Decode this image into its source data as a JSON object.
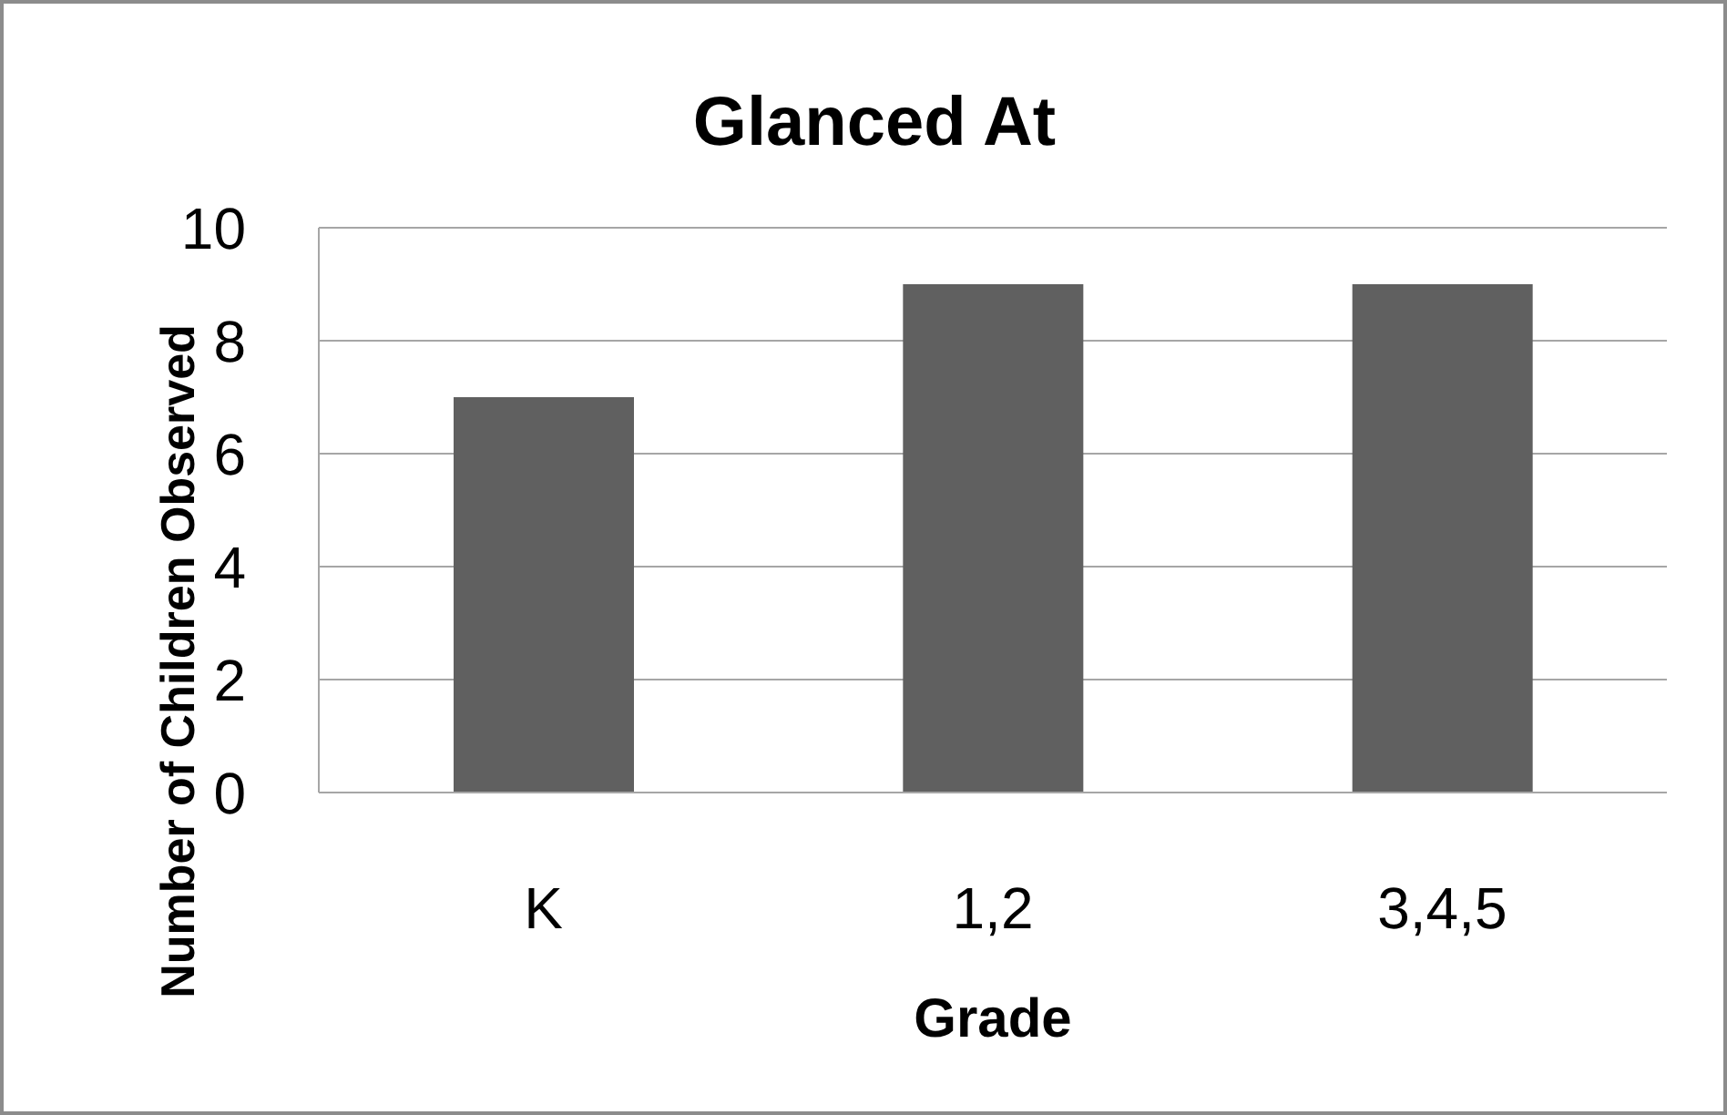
{
  "chart_data": {
    "type": "bar",
    "title": "Glanced At",
    "xlabel": "Grade",
    "ylabel": "Number of Children Observed",
    "categories": [
      "K",
      "1,2",
      "3,4,5"
    ],
    "values": [
      7,
      9,
      9
    ],
    "color": "#606060",
    "ylim": [
      0,
      10
    ],
    "yticks": [
      0,
      2,
      4,
      6,
      8,
      10
    ],
    "grid": "y"
  }
}
